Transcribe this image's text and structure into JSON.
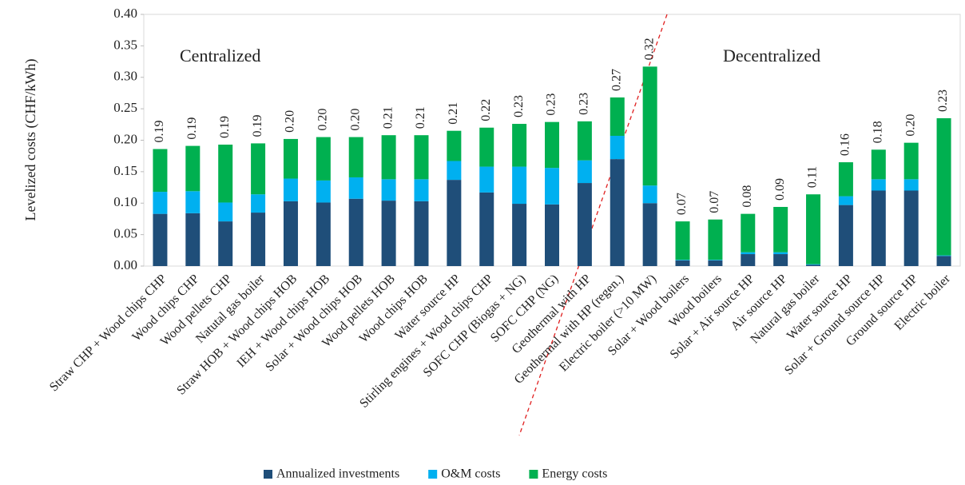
{
  "chart_data": {
    "type": "stacked_bar",
    "ylabel": "Levelized costs (CHF/kWh)",
    "annotations": [
      "Centralized",
      "Decentralized"
    ],
    "categories": [
      "Straw CHP + Wood chips CHP",
      "Wood chips CHP",
      "Wood pellets CHP",
      "Natutal gas boiler",
      "Straw HOB + Wood chips HOB",
      "IEH + Wood chips HOB",
      "Solar + Wood chips HOB",
      "Wood pellets HOB",
      "Wood chips HOB",
      "Water source HP",
      "Stirling engines + Wood chips CHP",
      "SOFC CHP  (Biogas + NG)",
      "SOFC CHP  (NG)",
      "Geothermal with HP",
      "Geothermal with HP (regen.)",
      "Electric boiler (>10 MW)",
      "Solar + Wood boilers",
      "Wood boilers",
      "Solar + Air source HP",
      "Air source HP",
      "Natural gas boiler",
      "Water source HP",
      "Solar + Ground source HP",
      "Ground source HP",
      "Electric boiler"
    ],
    "series": [
      {
        "name": "Annualized investments",
        "color": "#1f4e79",
        "values": [
          0.083,
          0.084,
          0.071,
          0.085,
          0.103,
          0.101,
          0.107,
          0.104,
          0.103,
          0.137,
          0.117,
          0.099,
          0.098,
          0.132,
          0.17,
          0.1,
          0.009,
          0.009,
          0.019,
          0.019,
          0.002,
          0.097,
          0.12,
          0.12,
          0.016
        ]
      },
      {
        "name": "O&M costs",
        "color": "#00b0f0",
        "values": [
          0.035,
          0.035,
          0.03,
          0.029,
          0.036,
          0.035,
          0.034,
          0.034,
          0.035,
          0.03,
          0.041,
          0.059,
          0.058,
          0.036,
          0.037,
          0.028,
          0.001,
          0.001,
          0.003,
          0.003,
          0.001,
          0.014,
          0.018,
          0.018,
          0.001
        ]
      },
      {
        "name": "Energy costs",
        "color": "#00b050",
        "values": [
          0.068,
          0.072,
          0.092,
          0.081,
          0.063,
          0.069,
          0.064,
          0.07,
          0.07,
          0.048,
          0.062,
          0.068,
          0.073,
          0.062,
          0.061,
          0.189,
          0.061,
          0.064,
          0.061,
          0.072,
          0.111,
          0.054,
          0.047,
          0.058,
          0.218
        ]
      }
    ],
    "total_labels": [
      "0.19",
      "0.19",
      "0.19",
      "0.19",
      "0.20",
      "0.20",
      "0.20",
      "0.21",
      "0.21",
      "0.21",
      "0.22",
      "0.23",
      "0.23",
      "0.23",
      "0.27",
      "0.32",
      "0.07",
      "0.07",
      "0.08",
      "0.09",
      "0.11",
      "0.16",
      "0.18",
      "0.20",
      "0.23"
    ],
    "ylim": [
      0,
      0.4
    ],
    "yticks": [
      {
        "value": 0,
        "label": "0.00"
      },
      {
        "value": 0.05,
        "label": "0.05"
      },
      {
        "value": 0.1,
        "label": "0.10"
      },
      {
        "value": 0.15,
        "label": "0.15"
      },
      {
        "value": 0.2,
        "label": "0.20"
      },
      {
        "value": 0.25,
        "label": "0.25"
      },
      {
        "value": 0.3,
        "label": "0.30"
      },
      {
        "value": 0.35,
        "label": "0.35"
      },
      {
        "value": 0.4,
        "label": "0.40"
      }
    ],
    "legend": "bottom"
  }
}
